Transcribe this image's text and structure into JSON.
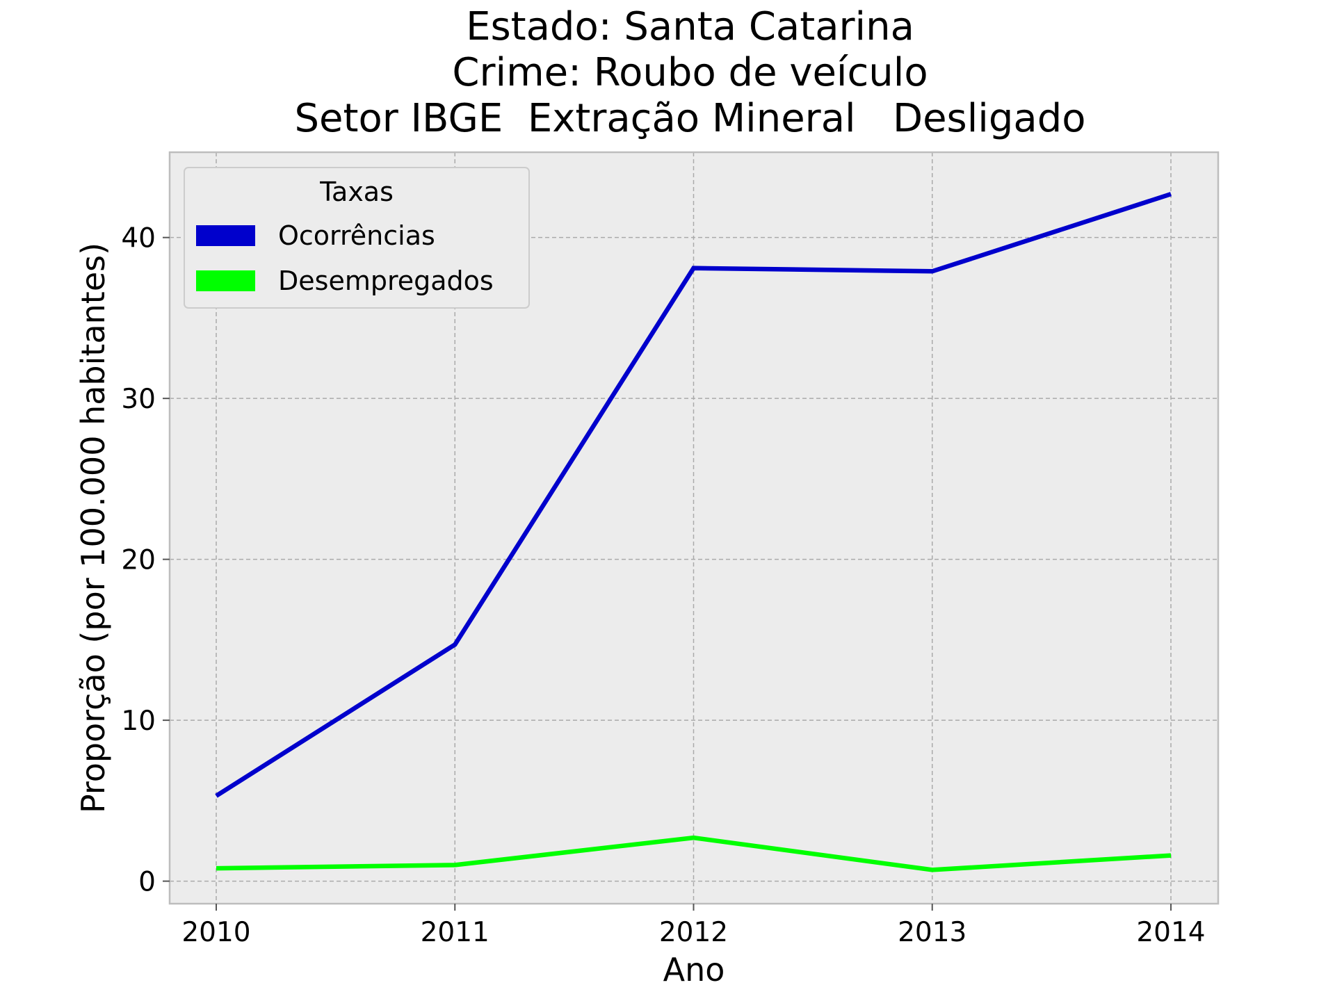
{
  "chart_data": {
    "type": "line",
    "title_lines": [
      "Estado: Santa Catarina",
      "Crime: Roubo de veículo",
      "Setor IBGE  Extração Mineral   Desligado"
    ],
    "xlabel": "Ano",
    "ylabel": "Proporção (por 100.000 habitantes)",
    "x": [
      "2010",
      "2011",
      "2012",
      "2013",
      "2014"
    ],
    "yticks": [
      "0",
      "10",
      "20",
      "30",
      "40"
    ],
    "ylim": [
      -1.4,
      45.3
    ],
    "grid": true,
    "legend": {
      "title": "Taxas",
      "placement": "top-left"
    },
    "series": [
      {
        "name": "Ocorrências",
        "color": "#0000cc",
        "values": [
          5.3,
          14.7,
          38.1,
          37.9,
          42.7
        ]
      },
      {
        "name": "Desempregados",
        "color": "#00ff00",
        "values": [
          0.8,
          1.0,
          2.7,
          0.7,
          1.6
        ]
      }
    ],
    "colors": {
      "plot_background": "#ececec",
      "grid": "#aaaaaa",
      "frame": "#bdbdbd"
    }
  }
}
